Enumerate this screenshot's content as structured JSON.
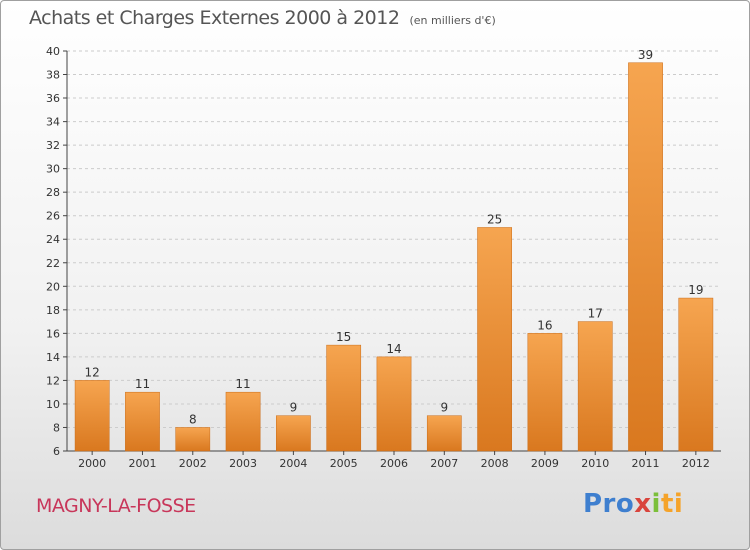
{
  "header": {
    "title": "Achats et Charges Externes 2000 à 2012",
    "subtitle": "(en milliers d'€)"
  },
  "footer": {
    "city": "MAGNY-LA-FOSSE",
    "logo_parts": [
      "Pro",
      "x",
      "i",
      "ti"
    ],
    "logo_text": "Proxiti"
  },
  "colors": {
    "bar_light": "#f6a550",
    "bar_dark": "#d9781f",
    "grid": "#cccccc",
    "axis": "#444444",
    "city": "#c8365a"
  },
  "chart_data": {
    "type": "bar",
    "categories": [
      "2000",
      "2001",
      "2002",
      "2003",
      "2004",
      "2005",
      "2006",
      "2007",
      "2008",
      "2009",
      "2010",
      "2011",
      "2012"
    ],
    "values": [
      12,
      11,
      8,
      11,
      9,
      15,
      14,
      9,
      25,
      16,
      17,
      39,
      19
    ],
    "title": "Achats et Charges Externes 2000 à 2012",
    "subtitle": "(en milliers d'€)",
    "xlabel": "",
    "ylabel": "",
    "ylim": [
      6,
      40
    ],
    "yticks": [
      6,
      8,
      10,
      12,
      14,
      16,
      18,
      20,
      22,
      24,
      26,
      28,
      30,
      32,
      34,
      36,
      38,
      40
    ],
    "grid": true,
    "legend": "none",
    "data_labels": true
  }
}
